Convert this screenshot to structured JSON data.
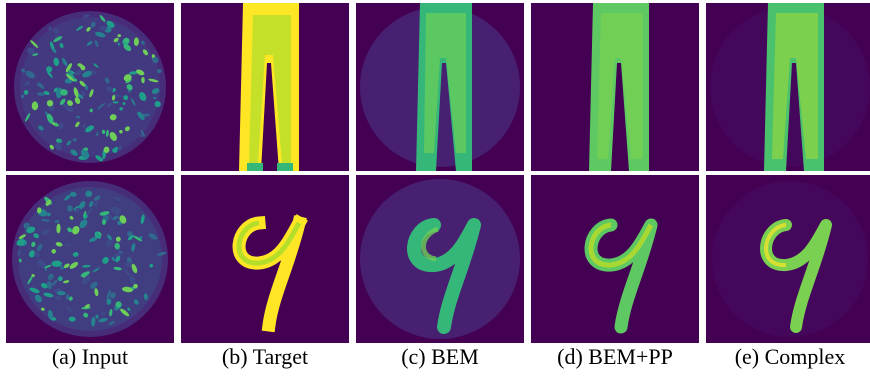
{
  "figure": {
    "columns": [
      {
        "caption": "(a) Input"
      },
      {
        "caption": "(b) Target"
      },
      {
        "caption": "(c) BEM"
      },
      {
        "caption": "(d) BEM+PP"
      },
      {
        "caption": "(e) Complex"
      }
    ],
    "rows": [
      {
        "content": "trousers"
      },
      {
        "content": "digit-9"
      }
    ]
  }
}
